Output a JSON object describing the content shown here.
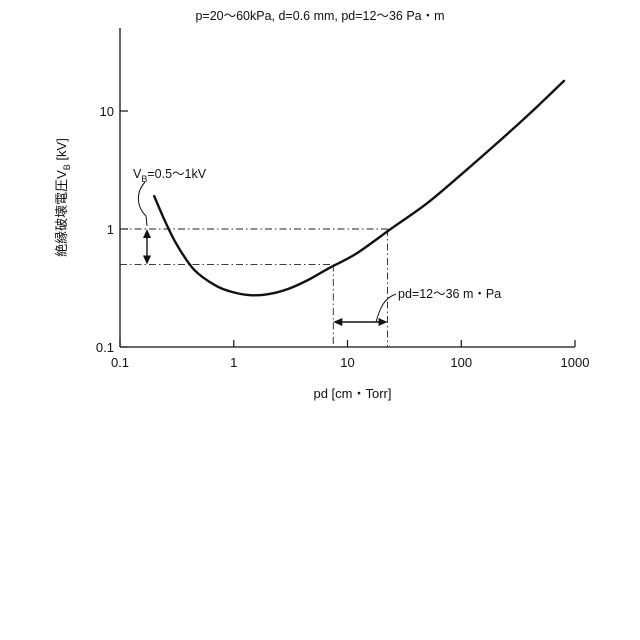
{
  "chart_data": {
    "type": "line",
    "title": "p=20～60kPa,  d=0.6 mm, pd=12～36 Pa・m",
    "xlabel": "pd [cm・Torr]",
    "ylabel": "絶縁破壊電圧V",
    "ylabel_subscript": "B",
    "ylabel_unit": " [kV]",
    "x_scale": "log",
    "y_scale": "log",
    "xlim": [
      0.1,
      1000
    ],
    "ylim": [
      0.1,
      50
    ],
    "x_ticks": [
      "0.1",
      "1",
      "10",
      "100",
      "1000"
    ],
    "y_ticks": [
      "0.1",
      "1",
      "10"
    ],
    "grid": false,
    "series": [
      {
        "x": [
          0.2,
          0.25,
          0.32,
          0.45,
          0.7,
          1.0,
          1.4,
          2.0,
          3.0,
          4.5,
          7.0,
          12,
          24,
          50,
          100,
          200,
          400,
          800
        ],
        "y": [
          1.9,
          1.15,
          0.72,
          0.45,
          0.33,
          0.29,
          0.275,
          0.28,
          0.31,
          0.37,
          0.47,
          0.62,
          1.0,
          1.65,
          2.9,
          5.2,
          9.5,
          18
        ]
      }
    ],
    "reference_lines": {
      "y_values": [
        0.5,
        1.0
      ],
      "x_values": [
        7.5,
        22.5
      ]
    },
    "annotations": {
      "vb": {
        "prefix": "V",
        "subscript": "B",
        "suffix": "=0.5～1kV"
      },
      "pd": {
        "text": "pd=12～36 m・Pa"
      }
    }
  }
}
